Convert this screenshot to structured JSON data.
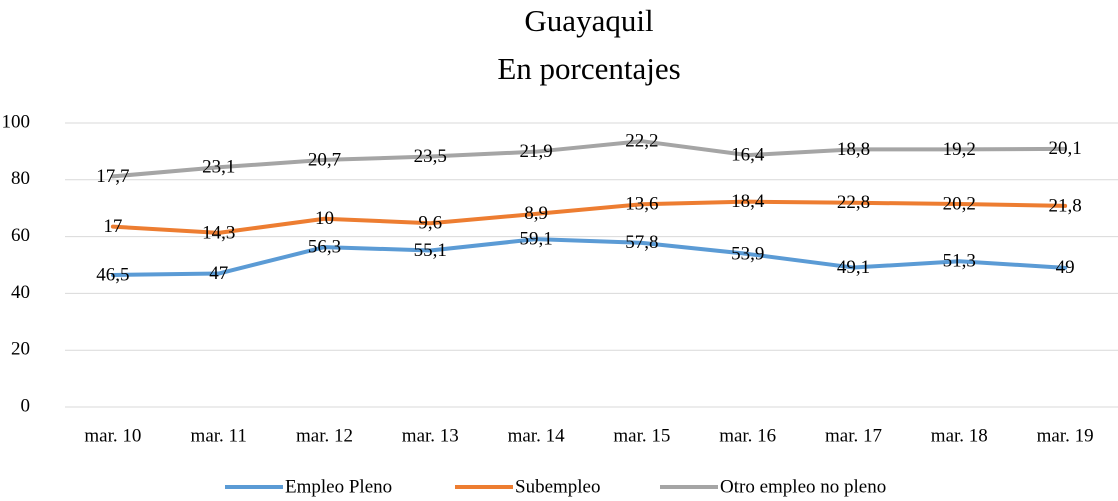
{
  "chart_data": {
    "type": "line",
    "stacked": true,
    "title": [
      "Guayaquil",
      "En porcentajes"
    ],
    "categories": [
      "mar. 10",
      "mar. 11",
      "mar. 12",
      "mar. 13",
      "mar. 14",
      "mar. 15",
      "mar. 16",
      "mar. 17",
      "mar. 18",
      "mar. 19"
    ],
    "series": [
      {
        "name": "Empleo Pleno",
        "color": "#5b9bd5",
        "values": [
          46.5,
          47,
          56.3,
          55.1,
          59.1,
          57.8,
          53.9,
          49.1,
          51.3,
          49
        ],
        "value_labels": [
          "46,5",
          "47",
          "56,3",
          "55,1",
          "59,1",
          "57,8",
          "53,9",
          "49,1",
          "51,3",
          "49"
        ]
      },
      {
        "name": "Subempleo",
        "color": "#ed7d31",
        "values": [
          17,
          14.3,
          10,
          9.6,
          8.9,
          13.6,
          18.4,
          22.8,
          20.2,
          21.8
        ],
        "value_labels": [
          "17",
          "14,3",
          "10",
          "9,6",
          "8,9",
          "13,6",
          "18,4",
          "22,8",
          "20,2",
          "21,8"
        ]
      },
      {
        "name": "Otro empleo no pleno",
        "color": "#a5a5a5",
        "values": [
          17.7,
          23.1,
          20.7,
          23.5,
          21.9,
          22.2,
          16.4,
          18.8,
          19.2,
          20.1
        ],
        "value_labels": [
          "17,7",
          "23,1",
          "20,7",
          "23,5",
          "21,9",
          "22,2",
          "16,4",
          "18,8",
          "19,2",
          "20,1"
        ]
      }
    ],
    "ylim": [
      0,
      100
    ],
    "yticks": [
      0,
      20,
      40,
      60,
      80,
      100
    ],
    "grid": true,
    "legend": "bottom"
  }
}
